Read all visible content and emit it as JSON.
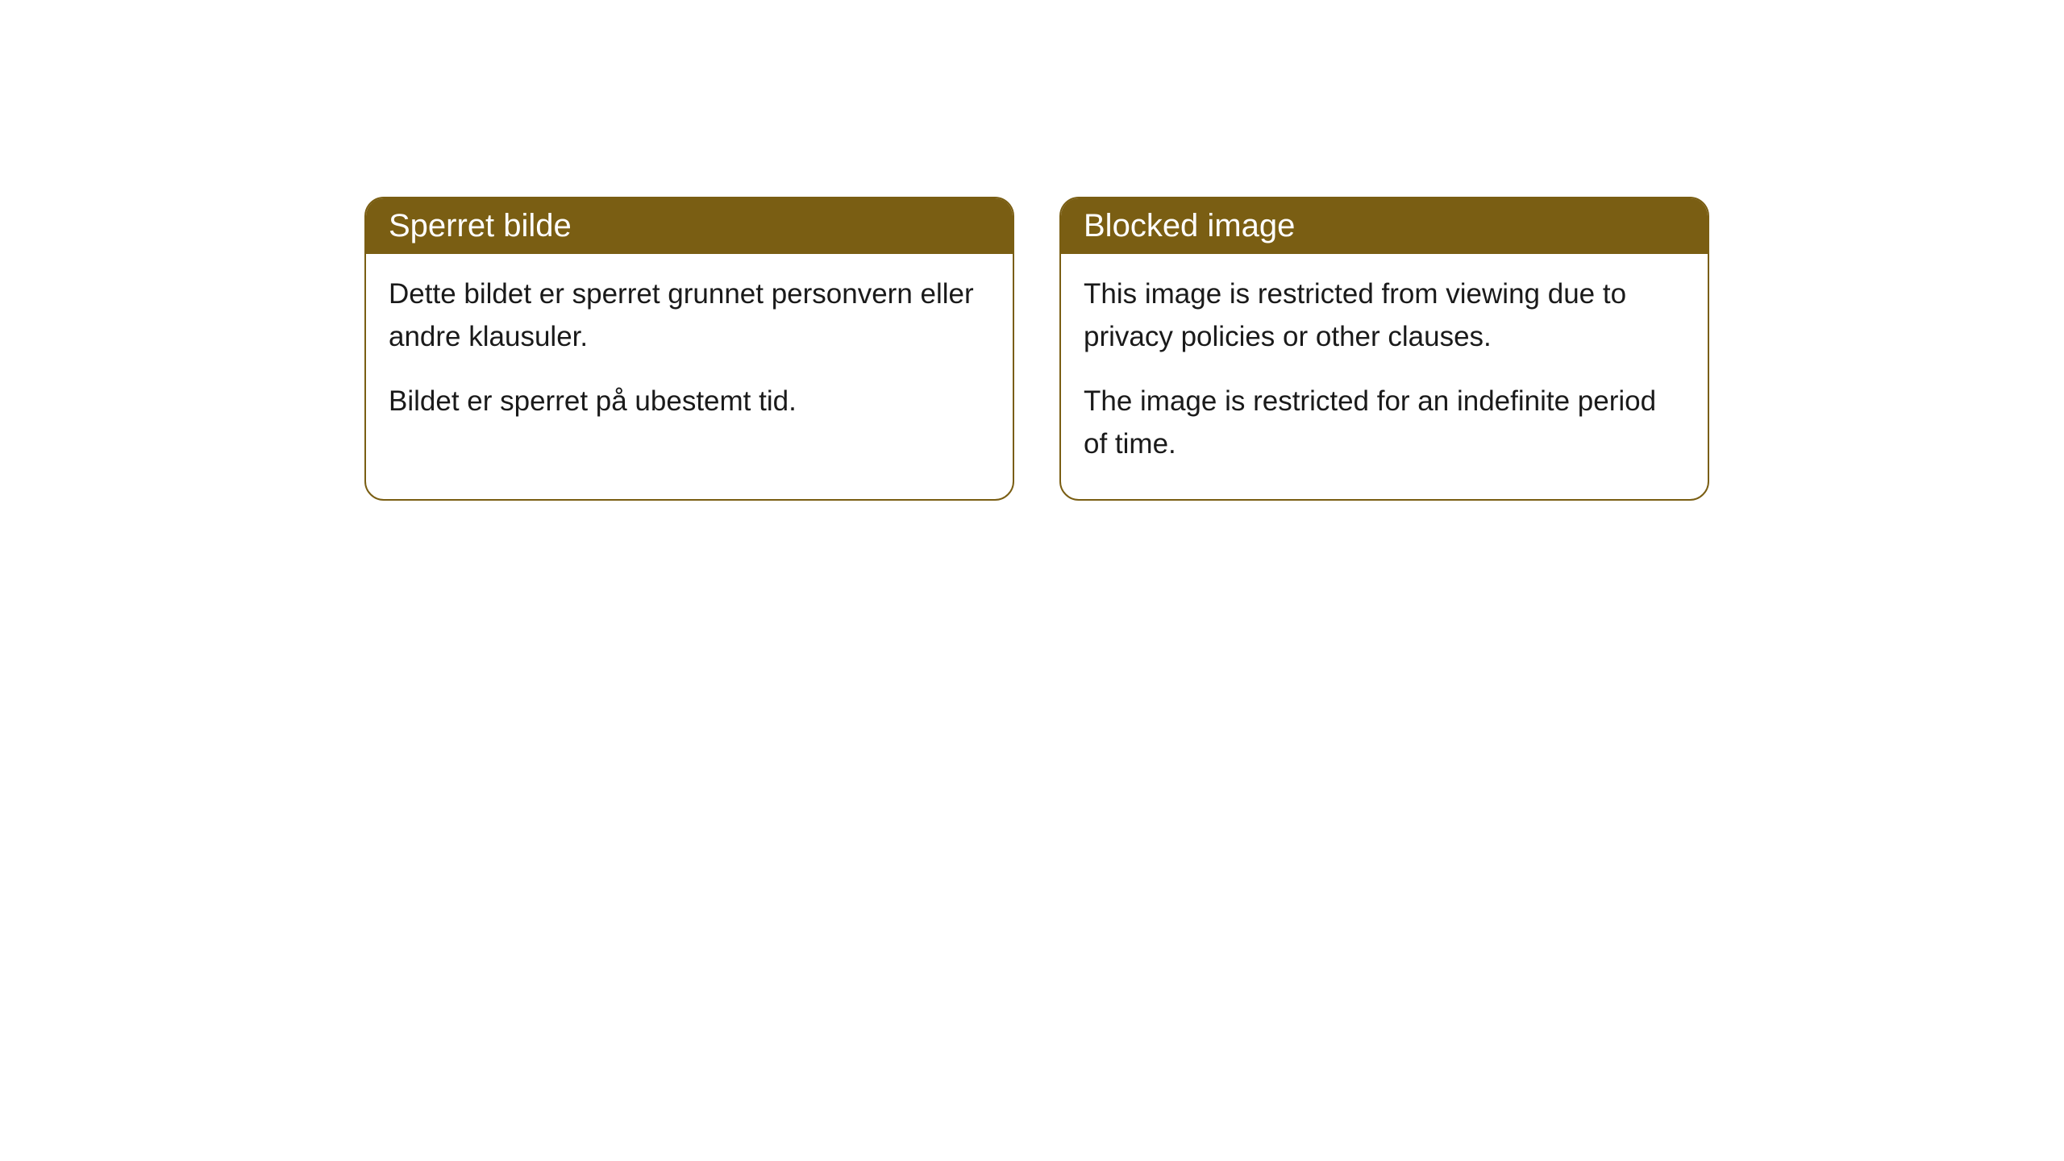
{
  "cards": [
    {
      "title": "Sperret bilde",
      "paragraph1": "Dette bildet er sperret grunnet personvern eller andre klausuler.",
      "paragraph2": "Bildet er sperret på ubestemt tid."
    },
    {
      "title": "Blocked image",
      "paragraph1": "This image is restricted from viewing due to privacy policies or other clauses.",
      "paragraph2": "The image is restricted for an indefinite period of time."
    }
  ],
  "styling": {
    "header_background": "#7a5e13",
    "header_text_color": "#ffffff",
    "border_color": "#7a5e13",
    "body_background": "#ffffff",
    "body_text_color": "#1a1a1a",
    "border_radius": 24,
    "title_fontsize": 40,
    "body_fontsize": 35
  }
}
